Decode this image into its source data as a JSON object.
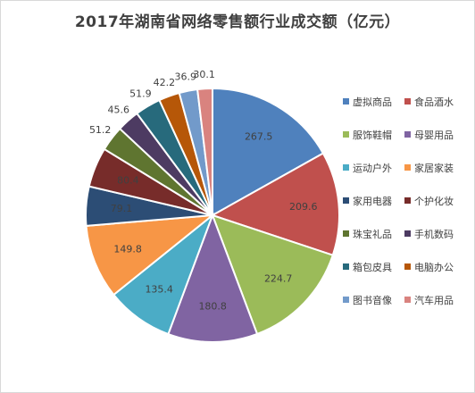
{
  "chart_data": {
    "type": "pie",
    "title": "2017年湖南省网络零售额行业成交额（亿元）",
    "legend_position": "right",
    "slices": [
      {
        "label": "虚拟商品",
        "value": 267.5,
        "color": "#4f81bd",
        "value_label": "267.5"
      },
      {
        "label": "食品酒水",
        "value": 209.6,
        "color": "#c0504d",
        "value_label": "209.6"
      },
      {
        "label": "服饰鞋帽",
        "value": 224.7,
        "color": "#9bbb59",
        "value_label": "224.7"
      },
      {
        "label": "母婴用品",
        "value": 180.8,
        "color": "#8064a2",
        "value_label": "180.8"
      },
      {
        "label": "运动户外",
        "value": 135.4,
        "color": "#4bacc6",
        "value_label": "135.4"
      },
      {
        "label": "家居家装",
        "value": 149.8,
        "color": "#f79646",
        "value_label": "149.8"
      },
      {
        "label": "家用电器",
        "value": 79.1,
        "color": "#2c4d75",
        "value_label": "79.1"
      },
      {
        "label": "个护化妆",
        "value": 80.4,
        "color": "#772c2a",
        "value_label": "80.4"
      },
      {
        "label": "珠宝礼品",
        "value": 51.2,
        "color": "#5f7530",
        "value_label": "51.2"
      },
      {
        "label": "手机数码",
        "value": 45.6,
        "color": "#4d3b62",
        "value_label": "45.6"
      },
      {
        "label": "箱包皮具",
        "value": 51.9,
        "color": "#276a7c",
        "value_label": "51.9"
      },
      {
        "label": "电脑办公",
        "value": 42.2,
        "color": "#b65708",
        "value_label": "42.2"
      },
      {
        "label": "图书音像",
        "value": 36.9,
        "color": "#729aca",
        "value_label": "36.9"
      },
      {
        "label": "汽车用品",
        "value": 30.1,
        "color": "#d9837f",
        "value_label": "30.1"
      }
    ]
  }
}
